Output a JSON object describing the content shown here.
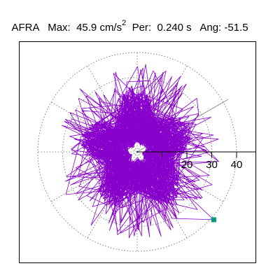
{
  "header": {
    "station": "AFRA",
    "max_label": "Max:",
    "max_value": "45.9 cm/s",
    "max_exponent": "2",
    "per_label": "Per:",
    "per_value": "0.240 s",
    "ang_label": "Ang:",
    "ang_value": "-51.5"
  },
  "chart_data": {
    "type": "polar-particle-motion",
    "radial_ticks": [
      10,
      20,
      30,
      40
    ],
    "radial_tick_labels": [
      "20",
      "30",
      "40"
    ],
    "max_radius": 45.9,
    "max_angle_deg": -51.5,
    "orbit_color": "#8800cc",
    "marker_color": "#009980",
    "grid_color": "#666666",
    "seed": 7
  }
}
